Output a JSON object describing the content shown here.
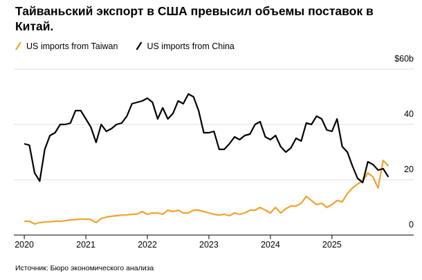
{
  "chart_data": {
    "type": "line",
    "title": "Тайваньский экспорт в США превысил объемы поставок в Китай.",
    "source": "Источник: Бюро экономического анализа",
    "x": [
      2020,
      2020.083,
      2020.167,
      2020.25,
      2020.333,
      2020.417,
      2020.5,
      2020.583,
      2020.667,
      2020.75,
      2020.833,
      2020.917,
      2021,
      2021.083,
      2021.167,
      2021.25,
      2021.333,
      2021.417,
      2021.5,
      2021.583,
      2021.667,
      2021.75,
      2021.833,
      2021.917,
      2022,
      2022.083,
      2022.167,
      2022.25,
      2022.333,
      2022.417,
      2022.5,
      2022.583,
      2022.667,
      2022.75,
      2022.833,
      2022.917,
      2023,
      2023.083,
      2023.167,
      2023.25,
      2023.333,
      2023.417,
      2023.5,
      2023.583,
      2023.667,
      2023.75,
      2023.833,
      2023.917,
      2024,
      2024.083,
      2024.167,
      2024.25,
      2024.333,
      2024.417,
      2024.5,
      2024.583,
      2024.667,
      2024.75,
      2024.833,
      2024.917,
      2025,
      2025.083,
      2025.167,
      2025.25,
      2025.333,
      2025.417,
      2025.5,
      2025.583,
      2025.667,
      2025.75,
      2025.833,
      2025.917
    ],
    "series": [
      {
        "name": "US imports from Taiwan",
        "color": "#f0a22e",
        "values": [
          5,
          5,
          4,
          4.5,
          4.7,
          4.8,
          5,
          5,
          5.2,
          5.5,
          5.6,
          5.8,
          5.8,
          5.6,
          4.5,
          6,
          6.5,
          6.8,
          7,
          7.2,
          7.3,
          7.5,
          7.6,
          8.5,
          7.5,
          8,
          8,
          7.5,
          9,
          8.5,
          9,
          8,
          8,
          9,
          9,
          8.5,
          8,
          7.5,
          7.2,
          7.5,
          7,
          8,
          7.5,
          8,
          9,
          9,
          10,
          9,
          8,
          10,
          8,
          9.5,
          10.5,
          10.5,
          11.5,
          14,
          12.5,
          11,
          11.5,
          10,
          11,
          12.5,
          12,
          15,
          17,
          18.5,
          19.5,
          22.5,
          21,
          17,
          27,
          25
        ]
      },
      {
        "name": "US imports from China",
        "color": "#000000",
        "values": [
          33,
          32.5,
          22.5,
          19.5,
          31,
          36,
          37,
          40,
          40,
          40.5,
          45,
          45,
          42,
          39,
          33.5,
          40,
          37.5,
          38.5,
          40,
          40.5,
          43,
          47.5,
          48,
          48.5,
          49.5,
          48,
          42,
          46,
          42,
          44,
          48.5,
          47.5,
          51,
          50,
          45,
          37,
          37,
          37.5,
          31,
          31,
          33,
          35.5,
          34.5,
          36,
          36.5,
          40,
          41,
          35.5,
          34.5,
          36,
          32,
          30,
          31.5,
          35,
          34,
          40.5,
          40,
          43,
          42,
          38,
          37.5,
          42,
          32,
          30,
          25,
          20.5,
          19,
          26.5,
          25.5,
          23.5,
          24,
          21
        ]
      }
    ],
    "xlim": [
      2019.83,
      2026.07
    ],
    "xticks": [
      2020,
      2021,
      2022,
      2023,
      2024,
      2025
    ],
    "ylim": [
      0,
      60
    ],
    "yticks": [
      0,
      20,
      40,
      {
        "value": 60,
        "label": "$60b"
      }
    ],
    "grid": true
  }
}
